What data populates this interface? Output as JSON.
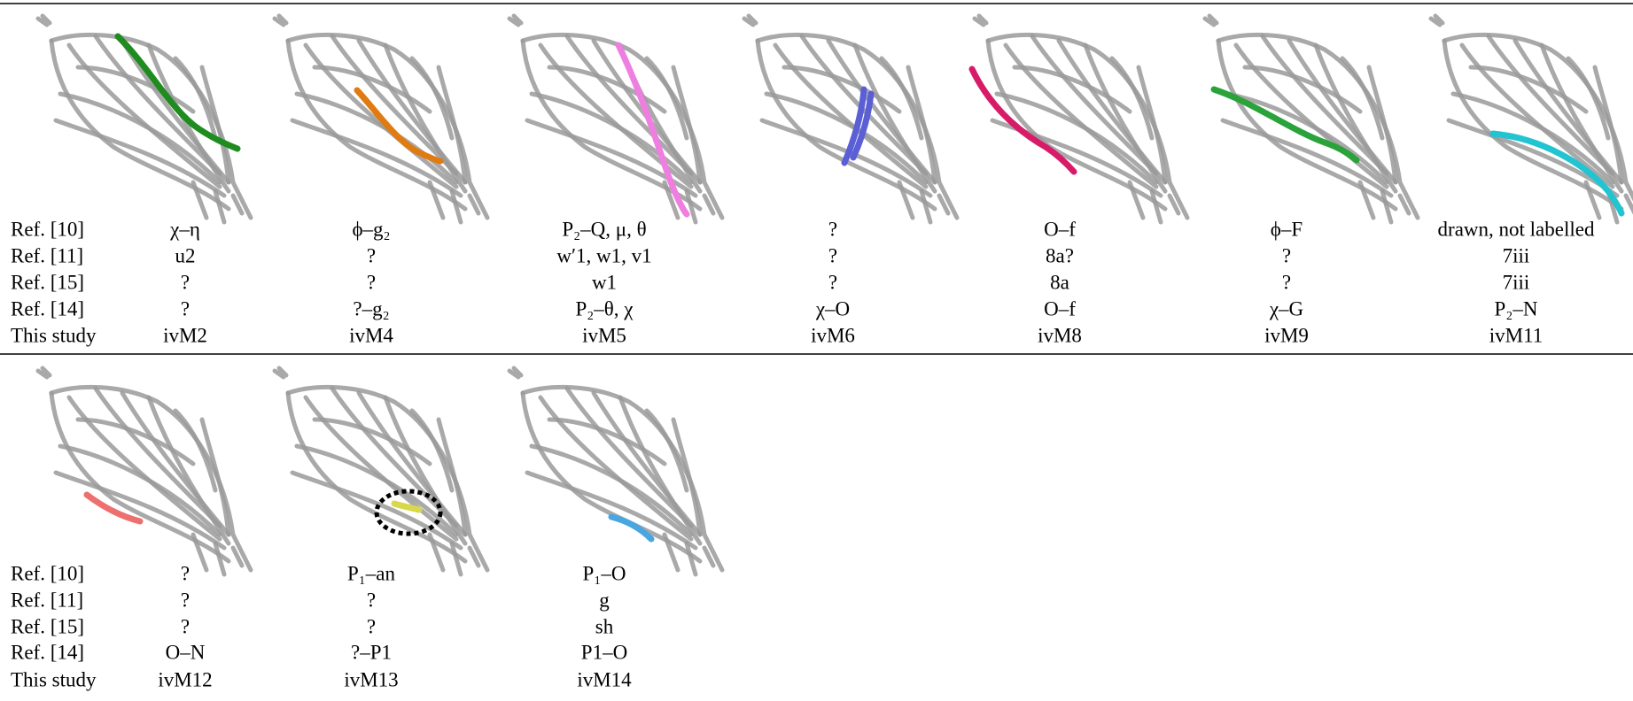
{
  "row_labels": [
    "Ref. [10]",
    "Ref. [11]",
    "Ref. [15]",
    "Ref. [14]",
    "This study"
  ],
  "blocks": [
    {
      "panels": [
        {
          "color": "#1e8c1e",
          "cells": [
            "χ–η",
            "u2",
            "?",
            "?",
            "ivM2"
          ]
        },
        {
          "color": "#e07b12",
          "cells": [
            "ϕ–g₂",
            "?",
            "?",
            "?–g₂",
            "ivM4"
          ]
        },
        {
          "color": "#ee7fe0",
          "cells": [
            "P₂–Q, μ, θ",
            "w′1, w1, v1",
            "w1",
            "P₂–θ, χ",
            "ivM5"
          ]
        },
        {
          "color": "#5b5fd6",
          "cells": [
            "?",
            "?",
            "?",
            "χ–O",
            "ivM6"
          ]
        },
        {
          "color": "#d81b68",
          "cells": [
            "O–f",
            "8a?",
            "8a",
            "O–f",
            "ivM8"
          ]
        },
        {
          "color": "#2aa33a",
          "cells": [
            "ϕ–F",
            "?",
            "?",
            "χ–G",
            "ivM9"
          ]
        },
        {
          "color": "#22c4d2",
          "cells": [
            "drawn, not labelled",
            "7iii",
            "7iii",
            "P₂–N",
            "ivM11"
          ]
        }
      ]
    },
    {
      "panels": [
        {
          "color": "#ee6f6f",
          "cells": [
            "?",
            "?",
            "?",
            "O–N",
            "ivM12"
          ]
        },
        {
          "color": "#d8d84a",
          "cells": [
            "P₁–an",
            "?",
            "?",
            "?–P1",
            "ivM13"
          ]
        },
        {
          "color": "#4aa6e0",
          "cells": [
            "P₁–O",
            "g",
            "sh",
            "P1–O",
            "ivM14"
          ]
        }
      ]
    }
  ]
}
